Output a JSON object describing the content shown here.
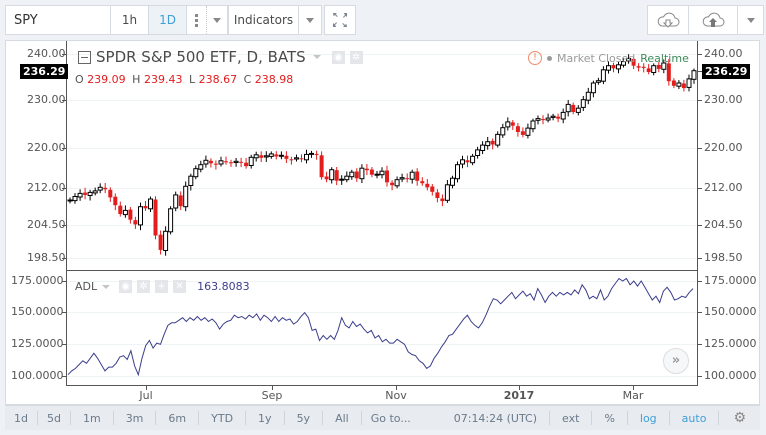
{
  "toolbar": {
    "symbol": "SPY",
    "intervals": [
      "1h",
      "1D"
    ],
    "active_interval": "1D",
    "indicators_label": "Indicators",
    "icons": [
      "more-dots-icon",
      "chevron-down-icon",
      "fullscreen-icon",
      "cloud-download-icon",
      "cloud-upload-icon",
      "chevron-down-icon"
    ]
  },
  "legend": {
    "title": "SPDR S&P 500 ETF, D, BATS",
    "ohlc": {
      "o_label": "O",
      "o": "239.09",
      "h_label": "H",
      "h": "239.43",
      "l_label": "L",
      "l": "238.67",
      "c_label": "C",
      "c": "238.98"
    },
    "market_status": "Market Closed",
    "realtime": "Realtime"
  },
  "price_axis": {
    "ticks": [
      "240.00",
      "230.00",
      "220.00",
      "212.00",
      "204.50",
      "198.50"
    ],
    "last_price": "236.29"
  },
  "adl": {
    "label": "ADL",
    "value": "163.8083",
    "ticks": [
      "175.0000",
      "150.0000",
      "125.0000",
      "100.0000"
    ]
  },
  "time_axis": {
    "labels": [
      "Jul",
      "Sep",
      "Nov",
      "2017",
      "Mar"
    ]
  },
  "bottom_bar": {
    "ranges": [
      "1d",
      "5d",
      "1m",
      "3m",
      "6m",
      "YTD",
      "1y",
      "5y",
      "All"
    ],
    "goto": "Go to...",
    "time": "07:14:24",
    "tz": "(UTC)",
    "options": [
      "ext",
      "%",
      "log",
      "auto"
    ]
  },
  "colors": {
    "up": "#000000",
    "down": "#e31c1c",
    "adl_line": "#3b3e8c",
    "accent": "#3ea0d8"
  },
  "chart_data": [
    {
      "type": "candlestick",
      "title": "SPDR S&P 500 ETF, D, BATS",
      "scale": "log",
      "ylim": [
        196,
        242
      ],
      "y_ticks": [
        198.5,
        204.5,
        212,
        220,
        230,
        240
      ],
      "x_labels": [
        "Jul",
        "Sep",
        "Nov",
        "2017",
        "Mar"
      ],
      "last_price": 236.29,
      "legend_ohlc": {
        "open": 239.09,
        "high": 239.43,
        "low": 238.67,
        "close": 238.98
      },
      "approx_closes": [
        209.5,
        210.2,
        210.8,
        210.5,
        211.0,
        211.3,
        212.0,
        211.6,
        210.0,
        208.5,
        206.8,
        207.5,
        205.7,
        204.8,
        208.2,
        207.9,
        209.7,
        202.7,
        200.0,
        203.5,
        207.8,
        210.5,
        208.3,
        212.2,
        214.2,
        215.7,
        216.5,
        217.4,
        216.8,
        216.5,
        217.3,
        217.1,
        216.8,
        217.2,
        217.0,
        216.2,
        218.0,
        218.5,
        217.9,
        218.3,
        218.7,
        218.2,
        218.4,
        217.7,
        217.5,
        217.9,
        217.6,
        218.6,
        218.8,
        218.5,
        214.0,
        213.6,
        215.5,
        213.3,
        213.6,
        214.2,
        215.0,
        213.8,
        215.8,
        215.4,
        214.5,
        214.6,
        215.2,
        213.0,
        212.4,
        213.5,
        213.9,
        213.7,
        215.0,
        213.3,
        212.8,
        212.0,
        211.1,
        209.9,
        209.3,
        212.5,
        213.8,
        216.5,
        217.5,
        217.0,
        218.2,
        219.5,
        220.5,
        221.2,
        220.6,
        222.7,
        224.1,
        225.3,
        224.5,
        223.2,
        222.6,
        224.0,
        225.5,
        226.0,
        225.8,
        226.1,
        226.5,
        226.0,
        227.3,
        229.0,
        227.4,
        228.2,
        230.0,
        231.6,
        233.6,
        234.1,
        236.5,
        237.4,
        236.8,
        237.6,
        238.3,
        239.0,
        237.4,
        237.0,
        236.9,
        236.0,
        237.4,
        236.7,
        238.0,
        234.0,
        233.0,
        233.6,
        232.5,
        234.5,
        236.29
      ],
      "series": [
        {
          "name": "ADL",
          "color": "#3b3e8c",
          "type": "line",
          "ylim": [
            95,
            180
          ],
          "y_ticks": [
            100,
            125,
            150,
            175
          ],
          "last_value": 163.8083,
          "values": [
            101,
            104,
            106,
            109,
            112,
            110,
            114,
            118,
            114,
            109,
            104,
            107,
            107,
            110,
            115,
            116,
            113,
            120,
            108,
            101,
            114,
            124,
            128,
            122,
            126,
            125,
            133,
            140,
            142,
            142,
            144,
            146,
            143,
            146,
            144,
            147,
            144,
            146,
            143,
            145,
            142,
            137,
            141,
            143,
            144,
            148,
            146,
            147,
            145,
            148,
            146,
            149,
            144,
            148,
            146,
            143,
            147,
            143,
            146,
            144,
            145,
            141,
            143,
            147,
            150,
            146,
            136,
            137,
            128,
            132,
            129,
            132,
            129,
            136,
            146,
            140,
            138,
            143,
            139,
            141,
            137,
            134,
            136,
            130,
            132,
            127,
            129,
            126,
            126,
            129,
            127,
            125,
            119,
            117,
            116,
            112,
            110,
            106,
            108,
            114,
            118,
            123,
            127,
            132,
            133,
            137,
            141,
            145,
            148,
            143,
            140,
            138,
            142,
            148,
            155,
            161,
            160,
            157,
            160,
            163,
            166,
            161,
            164,
            167,
            163,
            165,
            160,
            169,
            164,
            158,
            163,
            166,
            163,
            166,
            164,
            166,
            164,
            168,
            165,
            172,
            168,
            161,
            163,
            161,
            168,
            160,
            163,
            169,
            173,
            177,
            175,
            177,
            172,
            175,
            171,
            175,
            170,
            165,
            160,
            163,
            158,
            167,
            170,
            166,
            160,
            161,
            163,
            162,
            166,
            169
          ]
        }
      ]
    }
  ]
}
